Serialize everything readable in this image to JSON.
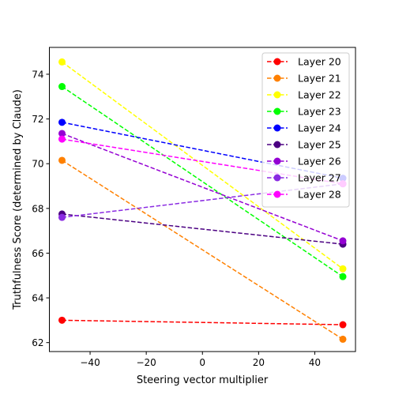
{
  "chart_data": {
    "type": "line",
    "title": "",
    "xlabel": "Steering vector multiplier",
    "ylabel": "Truthfulness Score (determined by Claude)",
    "xlim": [
      -54.5,
      54.5
    ],
    "ylim": [
      61.6,
      75.2
    ],
    "xticks": [
      -40,
      -20,
      0,
      20,
      40
    ],
    "yticks": [
      62,
      64,
      66,
      68,
      70,
      72,
      74
    ],
    "x": [
      -50,
      50
    ],
    "grid": false,
    "legend_position": "top-right",
    "series": [
      {
        "name": "Layer 20",
        "color": "#ff0000",
        "values": [
          63.0,
          62.8
        ]
      },
      {
        "name": "Layer 21",
        "color": "#ff8000",
        "values": [
          70.15,
          62.15
        ]
      },
      {
        "name": "Layer 22",
        "color": "#ffff00",
        "values": [
          74.55,
          65.3
        ]
      },
      {
        "name": "Layer 23",
        "color": "#00ff00",
        "values": [
          73.45,
          64.95
        ]
      },
      {
        "name": "Layer 24",
        "color": "#0000ff",
        "values": [
          71.85,
          69.35
        ]
      },
      {
        "name": "Layer 25",
        "color": "#4b0082",
        "values": [
          67.75,
          66.4
        ]
      },
      {
        "name": "Layer 26",
        "color": "#9400d3",
        "values": [
          71.35,
          66.55
        ]
      },
      {
        "name": "Layer 27",
        "color": "#8a2be2",
        "values": [
          67.6,
          69.1
        ]
      },
      {
        "name": "Layer 28",
        "color": "#ff00ff",
        "values": [
          71.1,
          69.1
        ]
      }
    ]
  }
}
